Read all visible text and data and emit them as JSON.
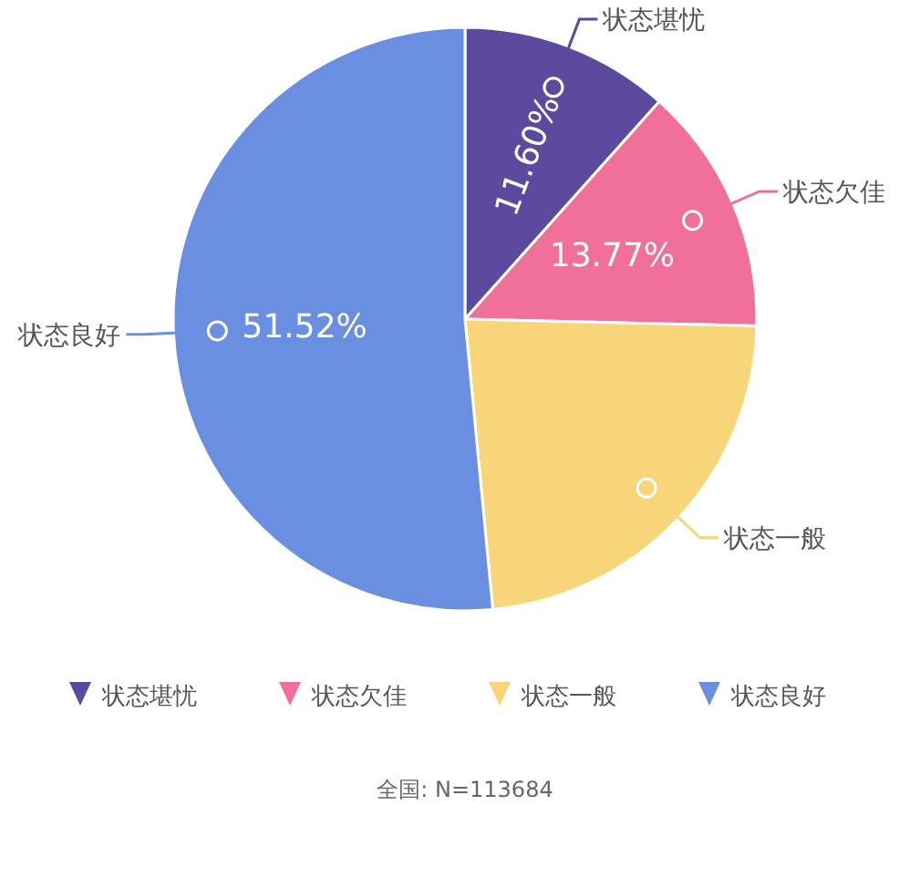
{
  "chart_data": {
    "type": "pie",
    "categories": [
      "状态堪忧",
      "状态欠佳",
      "状态一般",
      "状态良好"
    ],
    "values": [
      11.6,
      13.77,
      23.11,
      51.52
    ],
    "colors": [
      "#5b4a9e",
      "#f0709a",
      "#f9d57a",
      "#6b8fe0"
    ],
    "value_labels": [
      "11.60%",
      "13.77%",
      null,
      "51.52%"
    ],
    "legend": "bottom",
    "annotations": [
      "全国: N=113684"
    ]
  }
}
